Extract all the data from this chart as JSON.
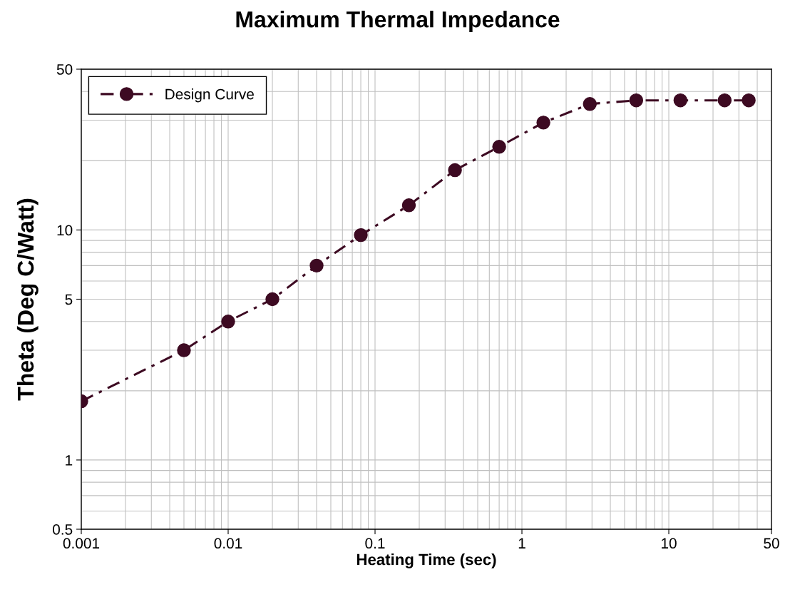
{
  "chart_data": {
    "type": "line",
    "title": "Maximum Thermal Impedance",
    "xlabel": "Heating Time (sec)",
    "ylabel": "Theta (Deg C/Watt)",
    "x": [
      0.001,
      0.005,
      0.01,
      0.02,
      0.04,
      0.08,
      0.17,
      0.35,
      0.7,
      1.4,
      2.9,
      6,
      12,
      24,
      35
    ],
    "series": [
      {
        "name": "Design Curve",
        "color": "#3d0a22",
        "values": [
          1.8,
          3.0,
          4.0,
          5.0,
          7.0,
          9.5,
          12.8,
          18.2,
          23,
          29.3,
          35.3,
          36.6,
          36.6,
          36.6,
          36.6
        ]
      }
    ],
    "log": "xy",
    "xlim": [
      0.001,
      50
    ],
    "ylim": [
      0.5,
      50
    ],
    "xticks": [
      0.001,
      0.01,
      0.1,
      1,
      10,
      50
    ],
    "yticks": [
      0.5,
      1,
      5,
      10,
      50
    ],
    "grid": true,
    "legend": "top left",
    "marker": "circle",
    "line_style": "dashed"
  }
}
